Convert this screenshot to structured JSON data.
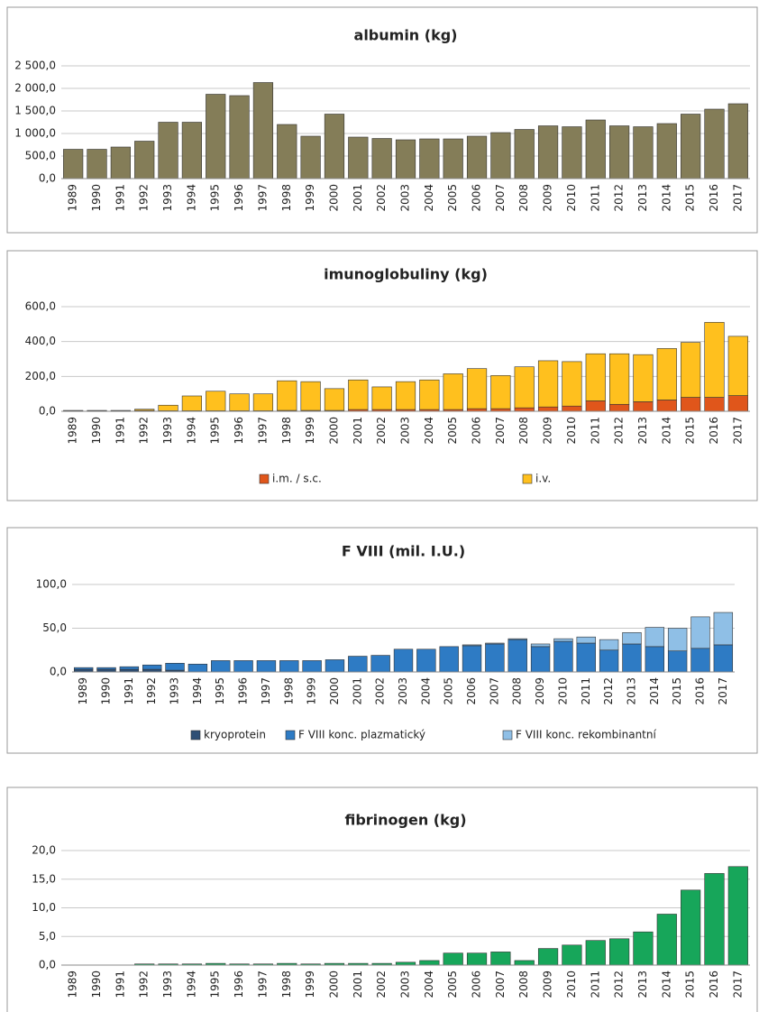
{
  "chart_data": [
    {
      "type": "bar",
      "title": "albumin (kg)",
      "categories": [
        "1989",
        "1990",
        "1991",
        "1992",
        "1993",
        "1994",
        "1995",
        "1996",
        "1997",
        "1998",
        "1999",
        "2000",
        "2001",
        "2002",
        "2003",
        "2004",
        "2005",
        "2006",
        "2007",
        "2008",
        "2009",
        "2010",
        "2011",
        "2012",
        "2013",
        "2014",
        "2015",
        "2016",
        "2017"
      ],
      "values": [
        650,
        650,
        700,
        830,
        1250,
        1250,
        1870,
        1840,
        2130,
        1200,
        940,
        1430,
        920,
        890,
        860,
        880,
        880,
        940,
        1020,
        1090,
        1170,
        1150,
        1300,
        1170,
        1150,
        1220,
        1430,
        1540,
        1660
      ],
      "color": "#847d58",
      "ylim": [
        0,
        2500
      ],
      "yticks": [
        {
          "value": 0,
          "label": "0,0"
        },
        {
          "value": 500,
          "label": "500,0"
        },
        {
          "value": 1000,
          "label": "1 000,0"
        },
        {
          "value": 1500,
          "label": "1 500,0"
        },
        {
          "value": 2000,
          "label": "2 000,0"
        },
        {
          "value": 2500,
          "label": "2 500,0"
        }
      ],
      "grid": true
    },
    {
      "type": "bar",
      "stacked": true,
      "title": "imunoglobuliny (kg)",
      "categories": [
        "1989",
        "1990",
        "1991",
        "1992",
        "1993",
        "1994",
        "1995",
        "1996",
        "1997",
        "1998",
        "1999",
        "2000",
        "2001",
        "2002",
        "2003",
        "2004",
        "2005",
        "2006",
        "2007",
        "2008",
        "2009",
        "2010",
        "2011",
        "2012",
        "2013",
        "2014",
        "2015",
        "2016",
        "2017"
      ],
      "series": [
        {
          "name": "i.m. / s.c.",
          "color": "#e0561b",
          "values": [
            2,
            2,
            2,
            5,
            3,
            3,
            3,
            3,
            3,
            5,
            5,
            5,
            10,
            10,
            10,
            10,
            10,
            15,
            15,
            20,
            25,
            30,
            60,
            40,
            55,
            65,
            80,
            80,
            90
          ]
        },
        {
          "name": "i.v.",
          "color": "#ffc01e",
          "values": [
            3,
            3,
            3,
            7,
            32,
            85,
            112,
            97,
            97,
            170,
            165,
            125,
            170,
            130,
            160,
            170,
            205,
            230,
            190,
            235,
            265,
            255,
            270,
            290,
            270,
            295,
            315,
            430,
            340
          ]
        }
      ],
      "ylim": [
        0,
        600
      ],
      "yticks": [
        {
          "value": 0,
          "label": "0,0"
        },
        {
          "value": 200,
          "label": "200,0"
        },
        {
          "value": 400,
          "label": "400,0"
        },
        {
          "value": 600,
          "label": "600,0"
        }
      ],
      "grid": true,
      "legend": "bottom"
    },
    {
      "type": "bar",
      "stacked": true,
      "title": "F VIII (mil. I.U.)",
      "categories": [
        "1989",
        "1990",
        "1991",
        "1992",
        "1993",
        "1994",
        "1995",
        "1996",
        "1997",
        "1998",
        "1999",
        "2000",
        "2001",
        "2002",
        "2003",
        "2004",
        "2005",
        "2006",
        "2007",
        "2008",
        "2009",
        "2010",
        "2011",
        "2012",
        "2013",
        "2014",
        "2015",
        "2016",
        "2017"
      ],
      "series": [
        {
          "name": "kryoprotein",
          "color": "#2f4f75",
          "values": [
            3,
            3,
            3,
            3,
            2,
            0,
            0,
            0,
            0,
            0,
            0,
            0,
            0,
            0,
            0,
            0,
            0,
            0,
            0,
            0,
            0,
            0,
            0,
            0,
            0,
            0,
            0,
            0,
            0
          ]
        },
        {
          "name": "F VIII konc. plazmatický",
          "color": "#2e7bc4",
          "values": [
            2,
            2,
            3,
            5,
            8,
            9,
            13,
            13,
            13,
            13,
            13,
            14,
            18,
            19,
            26,
            26,
            29,
            30,
            32,
            37,
            29,
            35,
            33,
            25,
            32,
            29,
            24,
            27,
            31
          ]
        },
        {
          "name": "F VIII konc. rekombinantní",
          "color": "#8fbfe6",
          "values": [
            0,
            0,
            0,
            0,
            0,
            0,
            0,
            0,
            0,
            0,
            0,
            0,
            0,
            0,
            0,
            0,
            0,
            1,
            1,
            1,
            3,
            3,
            7,
            12,
            13,
            22,
            26,
            36,
            37
          ]
        }
      ],
      "ylim": [
        0,
        100
      ],
      "yticks": [
        {
          "value": 0,
          "label": "0,0"
        },
        {
          "value": 50,
          "label": "50,0"
        },
        {
          "value": 100,
          "label": "100,0"
        }
      ],
      "grid": true,
      "legend": "bottom"
    },
    {
      "type": "bar",
      "title": "fibrinogen (kg)",
      "categories": [
        "1989",
        "1990",
        "1991",
        "1992",
        "1993",
        "1994",
        "1995",
        "1996",
        "1997",
        "1998",
        "1999",
        "2000",
        "2001",
        "2002",
        "2003",
        "2004",
        "2005",
        "2006",
        "2007",
        "2008",
        "2009",
        "2010",
        "2011",
        "2012",
        "2013",
        "2014",
        "2015",
        "2016",
        "2017"
      ],
      "values": [
        0,
        0,
        0,
        0.2,
        0.2,
        0.2,
        0.3,
        0.2,
        0.2,
        0.3,
        0.2,
        0.3,
        0.3,
        0.3,
        0.5,
        0.8,
        2.1,
        2.1,
        2.3,
        0.8,
        2.9,
        3.5,
        4.3,
        4.6,
        5.8,
        8.9,
        13.1,
        16.0,
        17.2
      ],
      "color": "#17a65a",
      "ylim": [
        0,
        20
      ],
      "yticks": [
        {
          "value": 0,
          "label": "0,0"
        },
        {
          "value": 5,
          "label": "5,0"
        },
        {
          "value": 10,
          "label": "10,0"
        },
        {
          "value": 15,
          "label": "15,0"
        },
        {
          "value": 20,
          "label": "20,0"
        }
      ],
      "grid": true
    }
  ]
}
